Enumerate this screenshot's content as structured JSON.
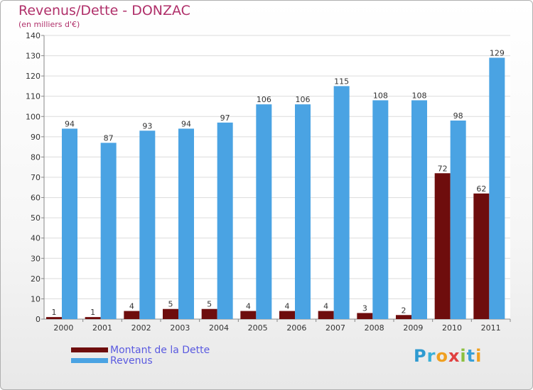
{
  "chart_data": {
    "type": "bar",
    "title": "Revenus/Dette - DONZAC",
    "subtitle": "(en milliers d'€)",
    "categories": [
      "2000",
      "2001",
      "2002",
      "2003",
      "2004",
      "2005",
      "2006",
      "2007",
      "2008",
      "2009",
      "2010",
      "2011"
    ],
    "series": [
      {
        "name": "Montant de la Dette",
        "color": "#6e0d0d",
        "values": [
          1,
          1,
          4,
          5,
          5,
          4,
          4,
          4,
          3,
          2,
          72,
          62
        ]
      },
      {
        "name": "Revenus",
        "color": "#4aa3e3",
        "values": [
          94,
          87,
          93,
          94,
          97,
          106,
          106,
          115,
          108,
          108,
          98,
          129
        ]
      }
    ],
    "ylim": [
      0,
      140
    ],
    "yticks": [
      0,
      10,
      20,
      30,
      40,
      50,
      60,
      70,
      80,
      90,
      100,
      110,
      120,
      130,
      140
    ],
    "grid": true,
    "legend": "bottom-left"
  },
  "logo": {
    "text": "Proxiti",
    "letters": [
      {
        "ch": "P",
        "color": "#2e9ad0"
      },
      {
        "ch": "r",
        "color": "#3ab0d8"
      },
      {
        "ch": "o",
        "color": "#f0a020"
      },
      {
        "ch": "x",
        "color": "#e04040"
      },
      {
        "ch": "i",
        "color": "#8cc040"
      },
      {
        "ch": "t",
        "color": "#3aa0d8"
      },
      {
        "ch": "i",
        "color": "#f0a020"
      }
    ]
  }
}
